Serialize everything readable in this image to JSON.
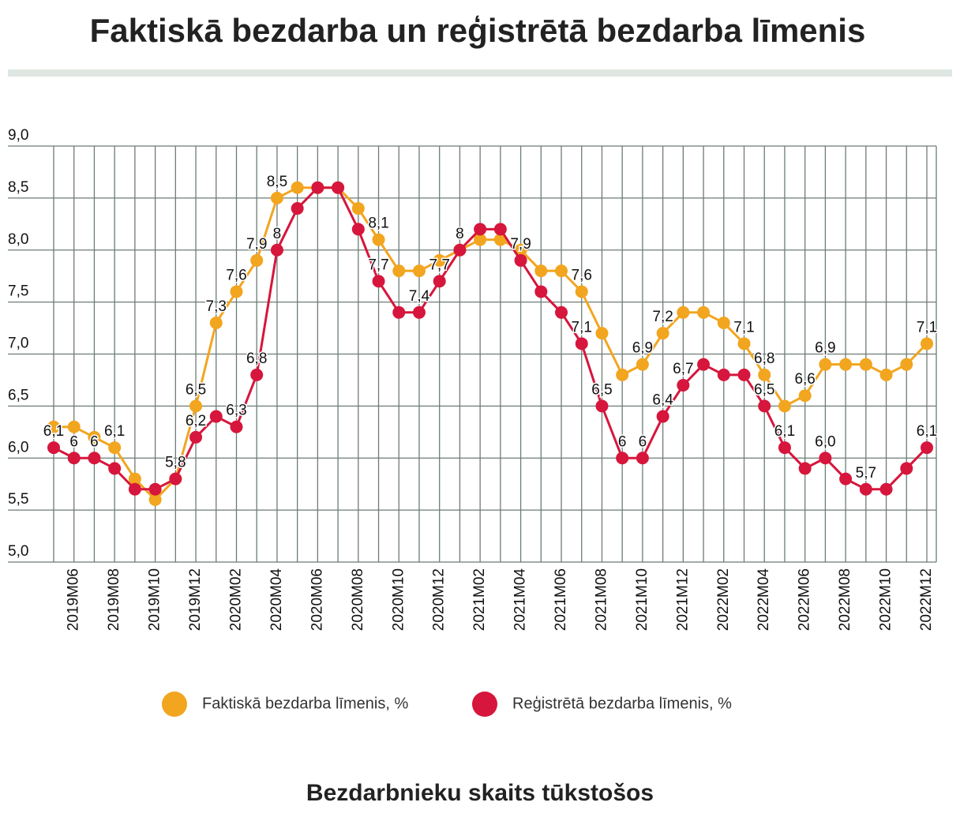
{
  "chart_data": {
    "type": "line",
    "title": "Faktiskā bezdarba un reģistrētā bezdarba līmenis",
    "categories": [
      null,
      "2019M06",
      null,
      "2019M08",
      null,
      "2019M10",
      null,
      "2019M12",
      null,
      "2020M02",
      null,
      "2020M04",
      null,
      "2020M06",
      null,
      "2020M08",
      null,
      "2020M10",
      null,
      "2020M12",
      null,
      "2021M02",
      null,
      "2021M04",
      null,
      "2021M06",
      null,
      "2021M08",
      null,
      "2021M10",
      null,
      "2021M12",
      null,
      "2022M02",
      null,
      "2022M04",
      null,
      "2022M06",
      null,
      "2022M08",
      null,
      "2022M10",
      null,
      "2022M12"
    ],
    "series": [
      {
        "name": "Faktiskā bezdarba līmenis, %",
        "color": "#f2a51f",
        "values": [
          6.3,
          6.3,
          6.2,
          6.1,
          5.8,
          5.6,
          5.8,
          6.5,
          7.3,
          7.6,
          7.9,
          8.5,
          8.6,
          8.6,
          8.6,
          8.4,
          8.1,
          7.8,
          7.8,
          7.9,
          8.0,
          8.1,
          8.1,
          8.0,
          7.8,
          7.8,
          7.6,
          7.2,
          6.8,
          6.9,
          7.2,
          7.4,
          7.4,
          7.3,
          7.1,
          6.8,
          6.5,
          6.6,
          6.9,
          6.9,
          6.9,
          6.8,
          6.9,
          7.1
        ],
        "value_labels": [
          null,
          null,
          null,
          "6,1",
          null,
          null,
          null,
          "6,5",
          "7,3",
          "7,6",
          "7,9",
          "8,5",
          null,
          null,
          null,
          null,
          "8,1",
          null,
          null,
          null,
          null,
          null,
          null,
          null,
          null,
          null,
          "7,6",
          null,
          null,
          "6,9",
          "7,2",
          null,
          null,
          null,
          "7,1",
          "6,8",
          null,
          "6,6",
          "6,9",
          null,
          null,
          null,
          null,
          "7,1"
        ]
      },
      {
        "name": "Reģistrētā bezdarba līmenis, %",
        "color": "#d6163c",
        "values": [
          6.1,
          6.0,
          6.0,
          5.9,
          5.7,
          5.7,
          5.8,
          6.2,
          6.4,
          6.3,
          6.8,
          8.0,
          8.4,
          8.6,
          8.6,
          8.2,
          7.7,
          7.4,
          7.4,
          7.7,
          8.0,
          8.2,
          8.2,
          7.9,
          7.6,
          7.4,
          7.1,
          6.5,
          6.0,
          6.0,
          6.4,
          6.7,
          6.9,
          6.8,
          6.8,
          6.5,
          6.1,
          5.9,
          6.0,
          5.8,
          5.7,
          5.7,
          5.9,
          6.1
        ],
        "value_labels": [
          "6,1",
          "6",
          "6",
          null,
          null,
          null,
          "5,8",
          "6,2",
          null,
          "6,3",
          "6,8",
          "8",
          null,
          null,
          null,
          null,
          "7,7",
          null,
          "7,4",
          "7,7",
          "8",
          null,
          null,
          "7,9",
          null,
          null,
          "7,1",
          "6,5",
          "6",
          "6",
          "6,4",
          "6,7",
          null,
          null,
          null,
          "6,5",
          "6,1",
          null,
          "6,0",
          null,
          "5,7",
          null,
          null,
          "6,1"
        ]
      }
    ],
    "ylim": [
      5,
      9
    ],
    "yticks": [
      {
        "value": 5,
        "label": "5,0"
      },
      {
        "value": 5.5,
        "label": "5,5"
      },
      {
        "value": 6,
        "label": "6,0"
      },
      {
        "value": 6.5,
        "label": "6,5"
      },
      {
        "value": 7,
        "label": "7,0"
      },
      {
        "value": 7.5,
        "label": "7,5"
      },
      {
        "value": 8,
        "label": "8,0"
      },
      {
        "value": 8.5,
        "label": "8,5"
      },
      {
        "value": 9,
        "label": "9,0"
      }
    ],
    "grid": true
  },
  "section_heading": "Bezdarbnieku skaits tūkstošos"
}
